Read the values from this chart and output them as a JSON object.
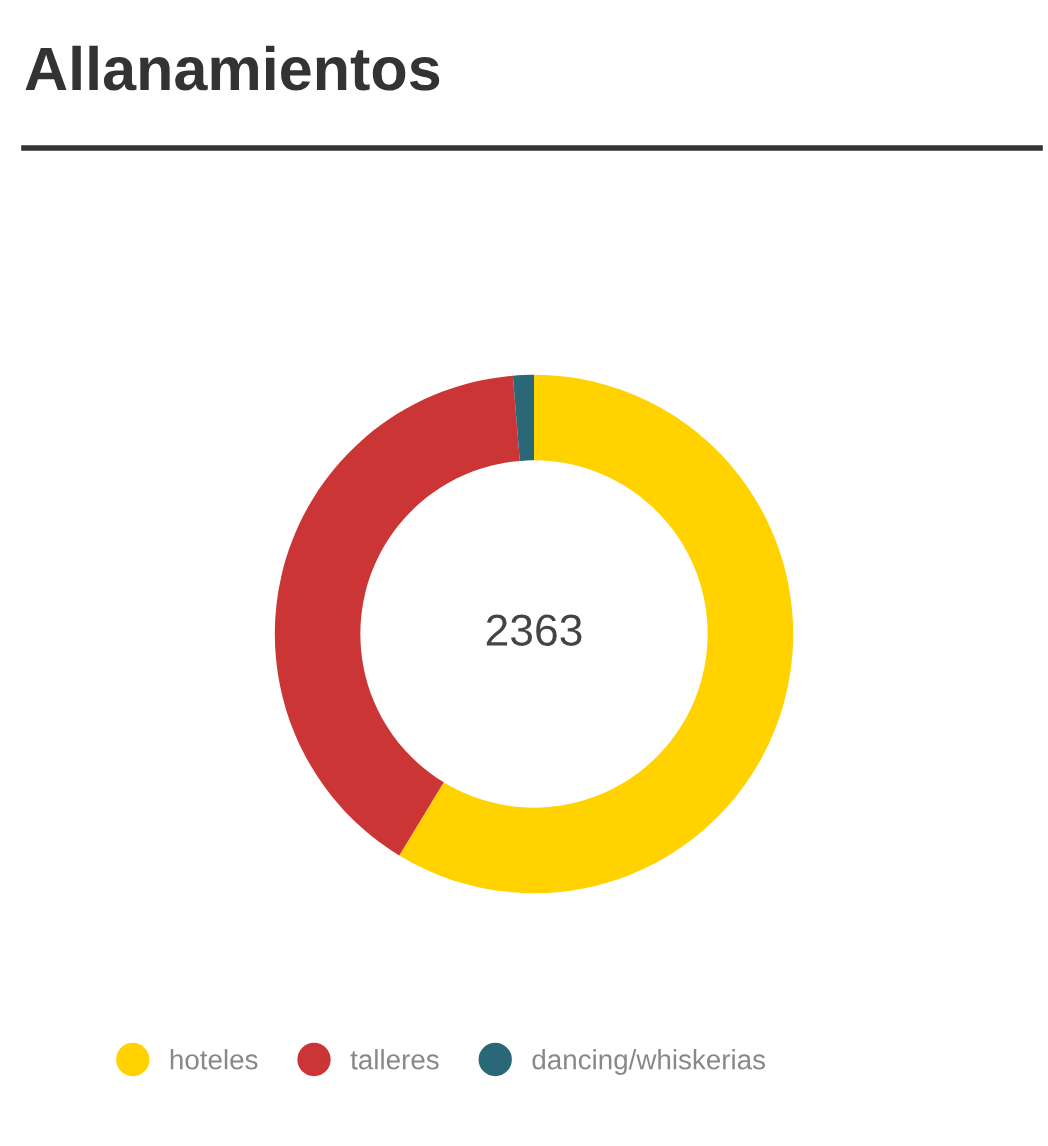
{
  "chart_data": {
    "type": "donut",
    "title": "Allanamientos",
    "categories": [
      "hoteles",
      "talleres",
      "dancing/whiskerias"
    ],
    "values": [
      58.7,
      40.0,
      1.3
    ],
    "colors": [
      "#ffd200",
      "#cc3535",
      "#2a6877"
    ],
    "annotations": [
      "2363"
    ],
    "legend": "bottom"
  }
}
